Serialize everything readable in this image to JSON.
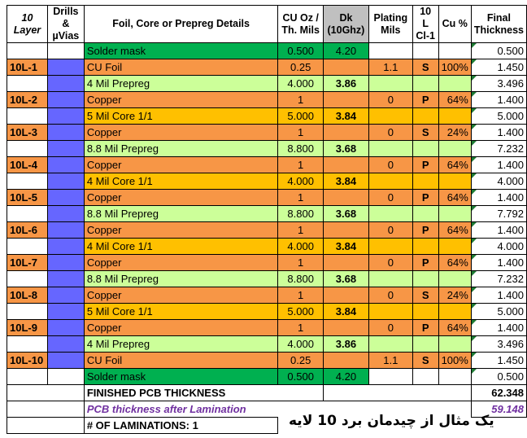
{
  "headers": {
    "layer": "10\nLayer",
    "drills": "Drills &\nµVias",
    "details": "Foil, Core or Prepreg Details",
    "cu": "CU Oz /\nTh. Mils",
    "dk": "Dk\n(10Ghz)",
    "plating": "Plating\nMils",
    "cl": "10 L\nCl-1",
    "cupct": "Cu %",
    "final": "Final\nThickness"
  },
  "rows": [
    {
      "layer": "",
      "detail": "Solder mask",
      "cu": "0.500",
      "dk": "4.20",
      "plating": "",
      "cl": "",
      "pct": "",
      "final": "0.500",
      "type": "mask"
    },
    {
      "layer": "10L-1",
      "detail": "CU Foil",
      "cu": "0.25",
      "dk": "",
      "plating": "1.1",
      "cl": "S",
      "pct": "100%",
      "final": "1.450",
      "type": "foil"
    },
    {
      "layer": "",
      "detail": "4 Mil Prepreg",
      "cu": "4.000",
      "dk": "3.86",
      "plating": "",
      "cl": "",
      "pct": "",
      "final": "3.496",
      "type": "prepreg"
    },
    {
      "layer": "10L-2",
      "detail": "Copper",
      "cu": "1",
      "dk": "",
      "plating": "0",
      "cl": "P",
      "pct": "64%",
      "final": "1.400",
      "type": "copper"
    },
    {
      "layer": "",
      "detail": "5 Mil Core 1/1",
      "cu": "5.000",
      "dk": "3.84",
      "plating": "",
      "cl": "",
      "pct": "",
      "final": "5.000",
      "type": "core"
    },
    {
      "layer": "10L-3",
      "detail": "Copper",
      "cu": "1",
      "dk": "",
      "plating": "0",
      "cl": "S",
      "pct": "24%",
      "final": "1.400",
      "type": "copper"
    },
    {
      "layer": "",
      "detail": "8.8 Mil Prepreg",
      "cu": "8.800",
      "dk": "3.68",
      "plating": "",
      "cl": "",
      "pct": "",
      "final": "7.232",
      "type": "prepreg"
    },
    {
      "layer": "10L-4",
      "detail": "Copper",
      "cu": "1",
      "dk": "",
      "plating": "0",
      "cl": "P",
      "pct": "64%",
      "final": "1.400",
      "type": "copper"
    },
    {
      "layer": "",
      "detail": "4 Mil Core 1/1",
      "cu": "4.000",
      "dk": "3.84",
      "plating": "",
      "cl": "",
      "pct": "",
      "final": "4.000",
      "type": "core"
    },
    {
      "layer": "10L-5",
      "detail": "Copper",
      "cu": "1",
      "dk": "",
      "plating": "0",
      "cl": "P",
      "pct": "64%",
      "final": "1.400",
      "type": "copper"
    },
    {
      "layer": "",
      "detail": "8.8 Mil Prepreg",
      "cu": "8.800",
      "dk": "3.68",
      "plating": "",
      "cl": "",
      "pct": "",
      "final": "7.792",
      "type": "prepreg"
    },
    {
      "layer": "10L-6",
      "detail": "Copper",
      "cu": "1",
      "dk": "",
      "plating": "0",
      "cl": "P",
      "pct": "64%",
      "final": "1.400",
      "type": "copper"
    },
    {
      "layer": "",
      "detail": "4 Mil Core 1/1",
      "cu": "4.000",
      "dk": "3.84",
      "plating": "",
      "cl": "",
      "pct": "",
      "final": "4.000",
      "type": "core"
    },
    {
      "layer": "10L-7",
      "detail": "Copper",
      "cu": "1",
      "dk": "",
      "plating": "0",
      "cl": "P",
      "pct": "64%",
      "final": "1.400",
      "type": "copper"
    },
    {
      "layer": "",
      "detail": "8.8 Mil Prepreg",
      "cu": "8.800",
      "dk": "3.68",
      "plating": "",
      "cl": "",
      "pct": "",
      "final": "7.232",
      "type": "prepreg"
    },
    {
      "layer": "10L-8",
      "detail": "Copper",
      "cu": "1",
      "dk": "",
      "plating": "0",
      "cl": "S",
      "pct": "24%",
      "final": "1.400",
      "type": "copper"
    },
    {
      "layer": "",
      "detail": "5 Mil Core 1/1",
      "cu": "5.000",
      "dk": "3.84",
      "plating": "",
      "cl": "",
      "pct": "",
      "final": "5.000",
      "type": "core"
    },
    {
      "layer": "10L-9",
      "detail": "Copper",
      "cu": "1",
      "dk": "",
      "plating": "0",
      "cl": "P",
      "pct": "64%",
      "final": "1.400",
      "type": "copper"
    },
    {
      "layer": "",
      "detail": "4 Mil Prepreg",
      "cu": "4.000",
      "dk": "3.86",
      "plating": "",
      "cl": "",
      "pct": "",
      "final": "3.496",
      "type": "prepreg"
    },
    {
      "layer": "10L-10",
      "detail": "CU Foil",
      "cu": "0.25",
      "dk": "",
      "plating": "1.1",
      "cl": "S",
      "pct": "100%",
      "final": "1.450",
      "type": "foil"
    },
    {
      "layer": "",
      "detail": "Solder mask",
      "cu": "0.500",
      "dk": "4.20",
      "plating": "",
      "cl": "",
      "pct": "",
      "final": "0.500",
      "type": "mask"
    }
  ],
  "footer": {
    "finished_label": "FINISHED PCB  THICKNESS",
    "finished_value": "62.348",
    "lamination_label": "PCB thickness after Lamination",
    "lamination_value": "59.148",
    "laminations_label": "# OF LAMINATIONS: 1"
  },
  "caption": "یک مثال از چیدمان برد 10 لایه",
  "colors": {
    "mask": "#00b050",
    "copper": "#f79646",
    "prepreg": "#ccff99",
    "core": "#ffc000",
    "via": "#6666ff",
    "lamination_text": "#7030a0"
  }
}
